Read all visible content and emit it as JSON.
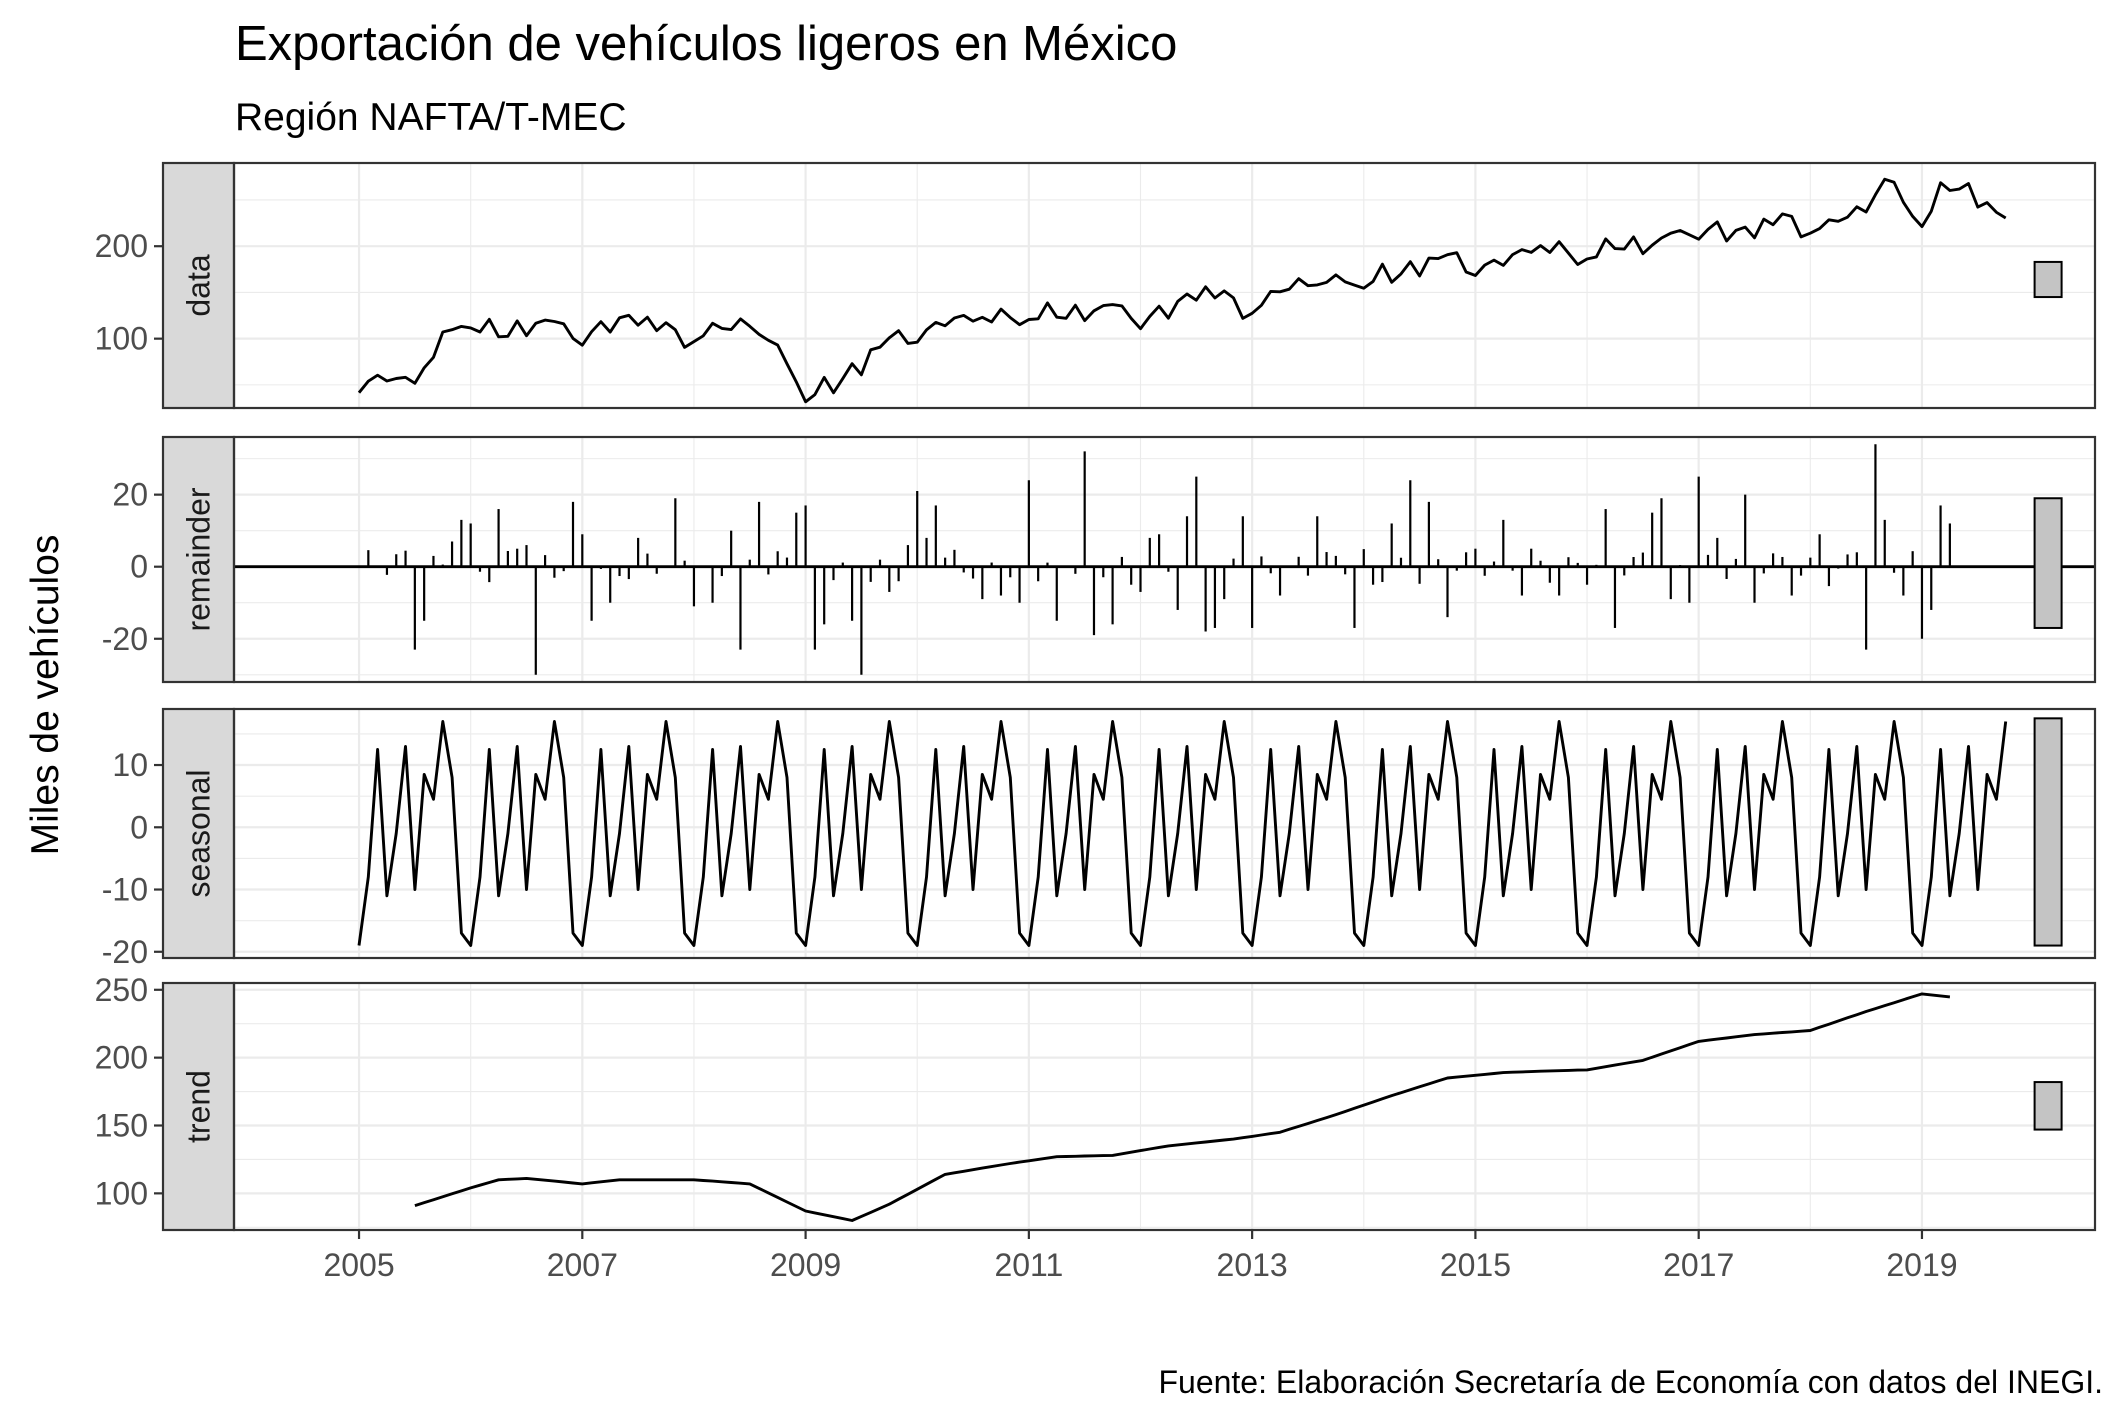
{
  "title": "Exportación de vehículos ligeros en México",
  "subtitle": "Región NAFTA/T-MEC",
  "ylabel": "Miles de vehículos",
  "caption": "Fuente: Elaboración Secretaría de Economía con datos del INEGI.",
  "chart_data": {
    "type": "line",
    "x": {
      "start": "2005-01",
      "frequency": "monthly",
      "n_points": 178,
      "range": [
        2003.88,
        2020.55
      ],
      "ticks": [
        2005,
        2007,
        2009,
        2011,
        2013,
        2015,
        2017,
        2019
      ],
      "tick_labels": [
        "2005",
        "2007",
        "2009",
        "2011",
        "2013",
        "2015",
        "2017",
        "2019"
      ]
    },
    "panels": [
      {
        "name": "data",
        "type": "line",
        "ylim": [
          25,
          290
        ],
        "ticks": [
          100,
          200
        ],
        "minor_ticks": [
          50,
          150,
          250
        ],
        "range_bar": [
          145,
          183
        ],
        "anchors": [
          [
            2005.0,
            52
          ],
          [
            2005.5,
            57
          ],
          [
            2005.917,
            118
          ],
          [
            2006.333,
            110
          ],
          [
            2006.917,
            110
          ],
          [
            2007.5,
            118
          ],
          [
            2008.0,
            102
          ],
          [
            2008.5,
            120
          ],
          [
            2009.0,
            42
          ],
          [
            2009.5,
            68
          ],
          [
            2009.917,
            110
          ],
          [
            2010.5,
            120
          ],
          [
            2011.0,
            125
          ],
          [
            2011.5,
            130
          ],
          [
            2012.0,
            125
          ],
          [
            2012.5,
            145
          ],
          [
            2013.0,
            138
          ],
          [
            2013.5,
            160
          ],
          [
            2014.0,
            162
          ],
          [
            2014.5,
            180
          ],
          [
            2015.0,
            182
          ],
          [
            2015.5,
            192
          ],
          [
            2016.0,
            195
          ],
          [
            2016.5,
            200
          ],
          [
            2017.0,
            218
          ],
          [
            2017.5,
            218
          ],
          [
            2018.0,
            225
          ],
          [
            2018.5,
            235
          ],
          [
            2018.667,
            270
          ],
          [
            2019.0,
            232
          ],
          [
            2019.25,
            265
          ],
          [
            2019.5,
            255
          ],
          [
            2019.833,
            215
          ]
        ],
        "seasonal_amplitude": 0.55,
        "noise_amplitude": 8
      },
      {
        "name": "remainder",
        "type": "bar",
        "ylim": [
          -32,
          36
        ],
        "ticks": [
          -20,
          0,
          20
        ],
        "minor_ticks": [
          -30,
          -10,
          10,
          30
        ],
        "range_bar": [
          -17,
          19
        ],
        "spikes": [
          [
            2005.5,
            -23
          ],
          [
            2005.583,
            -15
          ],
          [
            2005.833,
            7
          ],
          [
            2005.917,
            13
          ],
          [
            2006.0,
            12
          ],
          [
            2006.25,
            16
          ],
          [
            2006.417,
            5
          ],
          [
            2006.5,
            6
          ],
          [
            2006.583,
            -30
          ],
          [
            2006.917,
            18
          ],
          [
            2007.0,
            9
          ],
          [
            2007.083,
            -15
          ],
          [
            2007.25,
            -10
          ],
          [
            2007.5,
            8
          ],
          [
            2007.833,
            19
          ],
          [
            2008.0,
            -11
          ],
          [
            2008.167,
            -10
          ],
          [
            2008.333,
            10
          ],
          [
            2008.417,
            -23
          ],
          [
            2008.583,
            18
          ],
          [
            2008.917,
            15
          ],
          [
            2009.0,
            17
          ],
          [
            2009.083,
            -23
          ],
          [
            2009.167,
            -16
          ],
          [
            2009.417,
            -15
          ],
          [
            2009.5,
            -30
          ],
          [
            2009.75,
            -7
          ],
          [
            2009.917,
            6
          ],
          [
            2010.0,
            21
          ],
          [
            2010.083,
            8
          ],
          [
            2010.167,
            17
          ],
          [
            2010.583,
            -9
          ],
          [
            2010.75,
            -8
          ],
          [
            2010.917,
            -10
          ],
          [
            2011.0,
            24
          ],
          [
            2011.25,
            -15
          ],
          [
            2011.5,
            32
          ],
          [
            2011.583,
            -19
          ],
          [
            2011.75,
            -16
          ],
          [
            2011.917,
            -5
          ],
          [
            2012.0,
            -7
          ],
          [
            2012.083,
            8
          ],
          [
            2012.167,
            9
          ],
          [
            2012.333,
            -12
          ],
          [
            2012.417,
            14
          ],
          [
            2012.5,
            25
          ],
          [
            2012.583,
            -18
          ],
          [
            2012.667,
            -17
          ],
          [
            2012.75,
            -9
          ],
          [
            2012.917,
            14
          ],
          [
            2013.0,
            -17
          ],
          [
            2013.25,
            -8
          ],
          [
            2013.583,
            14
          ],
          [
            2013.75,
            3
          ],
          [
            2013.917,
            -17
          ],
          [
            2014.083,
            -5
          ],
          [
            2014.25,
            12
          ],
          [
            2014.417,
            24
          ],
          [
            2014.583,
            18
          ],
          [
            2014.75,
            -14
          ],
          [
            2014.917,
            4
          ],
          [
            2015.0,
            5
          ],
          [
            2015.25,
            13
          ],
          [
            2015.417,
            -8
          ],
          [
            2015.5,
            5
          ],
          [
            2015.75,
            -8
          ],
          [
            2016.0,
            -5
          ],
          [
            2016.167,
            16
          ],
          [
            2016.25,
            -17
          ],
          [
            2016.583,
            15
          ],
          [
            2016.667,
            19
          ],
          [
            2016.75,
            -9
          ],
          [
            2016.917,
            -10
          ],
          [
            2017.0,
            25
          ],
          [
            2017.167,
            8
          ],
          [
            2017.417,
            20
          ],
          [
            2017.5,
            -10
          ],
          [
            2017.833,
            -8
          ],
          [
            2018.083,
            9
          ],
          [
            2018.417,
            4
          ],
          [
            2018.5,
            -23
          ],
          [
            2018.583,
            34
          ],
          [
            2018.667,
            13
          ],
          [
            2018.833,
            -8
          ],
          [
            2019.0,
            -20
          ],
          [
            2019.083,
            -12
          ],
          [
            2019.167,
            17
          ],
          [
            2019.25,
            12
          ]
        ],
        "noise_amplitude": 4
      },
      {
        "name": "seasonal",
        "type": "line",
        "ylim": [
          -21,
          19
        ],
        "ticks": [
          -20,
          -10,
          0,
          10
        ],
        "minor_ticks": [
          -15,
          -5,
          5,
          15
        ],
        "range_bar": [
          -19,
          17.5
        ],
        "pattern": [
          -19,
          -8,
          12.5,
          -11,
          -1,
          13,
          -10,
          8.5,
          4.5,
          17,
          8,
          -17
        ]
      },
      {
        "name": "trend",
        "type": "line",
        "ylim": [
          73,
          255
        ],
        "ticks": [
          100,
          150,
          200,
          250
        ],
        "minor_ticks": [
          75,
          125,
          175,
          225
        ],
        "range_bar": [
          147,
          182
        ],
        "points": [
          [
            2005.5,
            91
          ],
          [
            2006.0,
            104
          ],
          [
            2006.25,
            110
          ],
          [
            2006.5,
            111
          ],
          [
            2007.0,
            107
          ],
          [
            2007.333,
            110
          ],
          [
            2008.0,
            110
          ],
          [
            2008.5,
            107
          ],
          [
            2009.0,
            87
          ],
          [
            2009.417,
            80
          ],
          [
            2009.75,
            92
          ],
          [
            2010.25,
            114
          ],
          [
            2010.833,
            122
          ],
          [
            2011.25,
            127
          ],
          [
            2011.75,
            128
          ],
          [
            2012.25,
            135
          ],
          [
            2012.833,
            140
          ],
          [
            2013.25,
            145
          ],
          [
            2013.75,
            158
          ],
          [
            2014.25,
            172
          ],
          [
            2014.75,
            185
          ],
          [
            2015.25,
            189
          ],
          [
            2015.583,
            190
          ],
          [
            2016.0,
            191
          ],
          [
            2016.5,
            198
          ],
          [
            2017.0,
            212
          ],
          [
            2017.5,
            217
          ],
          [
            2018.0,
            220
          ],
          [
            2018.5,
            234
          ],
          [
            2019.0,
            247
          ],
          [
            2019.333,
            244
          ]
        ]
      }
    ]
  }
}
